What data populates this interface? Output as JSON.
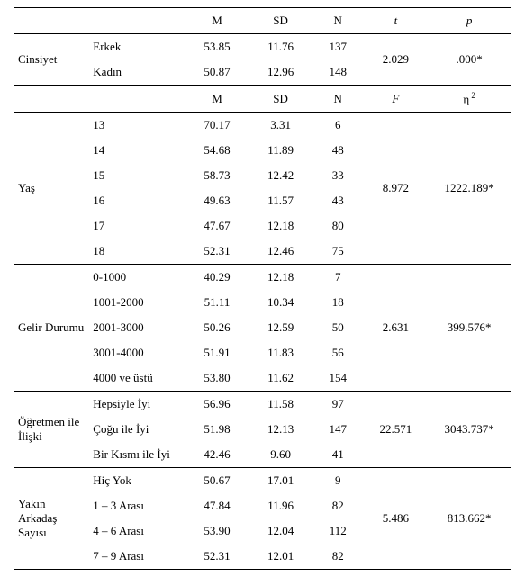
{
  "headers1": {
    "m": "M",
    "sd": "SD",
    "n": "N",
    "t": "t",
    "p": "p"
  },
  "headers2": {
    "m": "M",
    "sd": "SD",
    "n": "N",
    "f": "F",
    "eta": "η"
  },
  "sections": {
    "cinsiyet": {
      "label": "Cinsiyet",
      "rows": [
        {
          "cat": "Erkek",
          "m": "53.85",
          "sd": "11.76",
          "n": "137"
        },
        {
          "cat": "Kadın",
          "m": "50.87",
          "sd": "12.96",
          "n": "148"
        }
      ],
      "stat": "2.029",
      "sig": ".000*"
    },
    "yas": {
      "label": "Yaş",
      "rows": [
        {
          "cat": "13",
          "m": "70.17",
          "sd": "3.31",
          "n": "6"
        },
        {
          "cat": "14",
          "m": "54.68",
          "sd": "11.89",
          "n": "48"
        },
        {
          "cat": "15",
          "m": "58.73",
          "sd": "12.42",
          "n": "33"
        },
        {
          "cat": "16",
          "m": "49.63",
          "sd": "11.57",
          "n": "43"
        },
        {
          "cat": "17",
          "m": "47.67",
          "sd": "12.18",
          "n": "80"
        },
        {
          "cat": "18",
          "m": "52.31",
          "sd": "12.46",
          "n": "75"
        }
      ],
      "stat": "8.972",
      "sig": "1222.189*"
    },
    "gelir": {
      "label": "Gelir Durumu",
      "rows": [
        {
          "cat": "0-1000",
          "m": "40.29",
          "sd": "12.18",
          "n": "7"
        },
        {
          "cat": "1001-2000",
          "m": "51.11",
          "sd": "10.34",
          "n": "18"
        },
        {
          "cat": "2001-3000",
          "m": "50.26",
          "sd": "12.59",
          "n": "50"
        },
        {
          "cat": "3001-4000",
          "m": "51.91",
          "sd": "11.83",
          "n": "56"
        },
        {
          "cat": "4000 ve üstü",
          "m": "53.80",
          "sd": "11.62",
          "n": "154"
        }
      ],
      "stat": "2.631",
      "sig": "399.576*"
    },
    "ogretmen": {
      "label": "Öğretmen ile İlişki",
      "rows": [
        {
          "cat": "Hepsiyle İyi",
          "m": "56.96",
          "sd": "11.58",
          "n": "97"
        },
        {
          "cat": "Çoğu ile İyi",
          "m": "51.98",
          "sd": "12.13",
          "n": "147"
        },
        {
          "cat": "Bir Kısmı ile İyi",
          "m": "42.46",
          "sd": "9.60",
          "n": "41"
        }
      ],
      "stat": "22.571",
      "sig": "3043.737*"
    },
    "arkadas": {
      "label": "Yakın Arkadaş Sayısı",
      "rows": [
        {
          "cat": "Hiç Yok",
          "m": "50.67",
          "sd": "17.01",
          "n": "9"
        },
        {
          "cat": "1 – 3 Arası",
          "m": "47.84",
          "sd": "11.96",
          "n": "82"
        },
        {
          "cat": "4 – 6 Arası",
          "m": "53.90",
          "sd": "12.04",
          "n": "112"
        },
        {
          "cat": "7 – 9 Arası",
          "m": "52.31",
          "sd": "12.01",
          "n": "82"
        }
      ],
      "stat": "5.486",
      "sig": "813.662*"
    }
  }
}
